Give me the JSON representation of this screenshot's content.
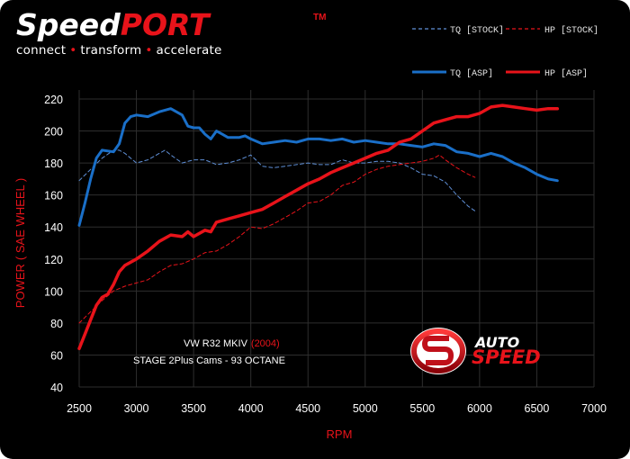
{
  "brand": {
    "word_a": "Speed",
    "word_b": "PORT",
    "tm": "TM",
    "tagline": [
      "connect",
      "transform",
      "accelerate"
    ]
  },
  "annotation": {
    "line1_main": "VW R32 MKIV",
    "line1_year": "(2004)",
    "line2": "STAGE 2Plus Cams - 93 OCTANE"
  },
  "sponsor": {
    "word1": "AUTO",
    "word2": "SPEED"
  },
  "colors": {
    "asp_tq": "#1a6fc8",
    "stock_tq": "#5f8fd6",
    "hp": "#e8131a",
    "background": "#000000",
    "grid": "#2e2e2e"
  },
  "chart_data": {
    "type": "line",
    "xlabel": "RPM",
    "ylabel_main": "POWER",
    "ylabel_paren": "( SAE WHEEL )",
    "xlim": [
      2500,
      7000
    ],
    "ylim": [
      40,
      220
    ],
    "xticks": [
      2500,
      3000,
      3500,
      4000,
      4500,
      5000,
      5500,
      6000,
      6500,
      7000
    ],
    "yticks": [
      40,
      60,
      80,
      100,
      120,
      140,
      160,
      180,
      200,
      220
    ],
    "grid": true,
    "legend_position": "top-right",
    "series": [
      {
        "name": "TQ [STOCK]",
        "style": "dashed",
        "color": "#5f8fd6",
        "width": 1,
        "points": [
          [
            2500,
            169
          ],
          [
            2600,
            176
          ],
          [
            2700,
            183
          ],
          [
            2800,
            188
          ],
          [
            2850,
            188
          ],
          [
            2900,
            186
          ],
          [
            3000,
            180
          ],
          [
            3100,
            182
          ],
          [
            3200,
            186
          ],
          [
            3250,
            188
          ],
          [
            3300,
            185
          ],
          [
            3400,
            180
          ],
          [
            3500,
            182
          ],
          [
            3600,
            182
          ],
          [
            3700,
            179
          ],
          [
            3800,
            180
          ],
          [
            3900,
            182
          ],
          [
            4000,
            185
          ],
          [
            4100,
            178
          ],
          [
            4200,
            177
          ],
          [
            4300,
            178
          ],
          [
            4400,
            179
          ],
          [
            4500,
            180
          ],
          [
            4600,
            179
          ],
          [
            4700,
            179
          ],
          [
            4800,
            182
          ],
          [
            4900,
            180
          ],
          [
            5000,
            180
          ],
          [
            5100,
            181
          ],
          [
            5200,
            181
          ],
          [
            5300,
            180
          ],
          [
            5400,
            177
          ],
          [
            5500,
            173
          ],
          [
            5600,
            172
          ],
          [
            5700,
            168
          ],
          [
            5800,
            160
          ],
          [
            5900,
            153
          ],
          [
            5960,
            150
          ]
        ]
      },
      {
        "name": "HP [STOCK]",
        "style": "dashed",
        "color": "#e8131a",
        "width": 1,
        "points": [
          [
            2500,
            80
          ],
          [
            2600,
            87
          ],
          [
            2700,
            94
          ],
          [
            2800,
            100
          ],
          [
            2900,
            103
          ],
          [
            3000,
            105
          ],
          [
            3100,
            107
          ],
          [
            3200,
            112
          ],
          [
            3300,
            116
          ],
          [
            3400,
            117
          ],
          [
            3500,
            120
          ],
          [
            3600,
            124
          ],
          [
            3700,
            125
          ],
          [
            3800,
            129
          ],
          [
            3900,
            134
          ],
          [
            4000,
            140
          ],
          [
            4100,
            139
          ],
          [
            4200,
            142
          ],
          [
            4300,
            146
          ],
          [
            4400,
            150
          ],
          [
            4500,
            155
          ],
          [
            4600,
            156
          ],
          [
            4700,
            160
          ],
          [
            4800,
            166
          ],
          [
            4900,
            168
          ],
          [
            5000,
            173
          ],
          [
            5100,
            176
          ],
          [
            5200,
            178
          ],
          [
            5300,
            179
          ],
          [
            5400,
            180
          ],
          [
            5500,
            181
          ],
          [
            5600,
            183
          ],
          [
            5650,
            185
          ],
          [
            5700,
            182
          ],
          [
            5800,
            177
          ],
          [
            5900,
            173
          ],
          [
            5960,
            171
          ]
        ]
      },
      {
        "name": "TQ [ASP]",
        "style": "solid",
        "color": "#1a6fc8",
        "width": 3,
        "points": [
          [
            2500,
            141
          ],
          [
            2550,
            155
          ],
          [
            2600,
            170
          ],
          [
            2650,
            183
          ],
          [
            2700,
            188
          ],
          [
            2800,
            187
          ],
          [
            2850,
            192
          ],
          [
            2900,
            205
          ],
          [
            2950,
            209
          ],
          [
            3000,
            210
          ],
          [
            3100,
            209
          ],
          [
            3200,
            212
          ],
          [
            3300,
            214
          ],
          [
            3400,
            210
          ],
          [
            3450,
            203
          ],
          [
            3500,
            202
          ],
          [
            3550,
            202
          ],
          [
            3600,
            198
          ],
          [
            3650,
            195
          ],
          [
            3700,
            200
          ],
          [
            3750,
            198
          ],
          [
            3800,
            196
          ],
          [
            3900,
            196
          ],
          [
            3950,
            197
          ],
          [
            4000,
            195
          ],
          [
            4100,
            192
          ],
          [
            4200,
            193
          ],
          [
            4300,
            194
          ],
          [
            4400,
            193
          ],
          [
            4500,
            195
          ],
          [
            4600,
            195
          ],
          [
            4700,
            194
          ],
          [
            4800,
            195
          ],
          [
            4900,
            193
          ],
          [
            5000,
            194
          ],
          [
            5100,
            193
          ],
          [
            5200,
            192
          ],
          [
            5300,
            192
          ],
          [
            5400,
            191
          ],
          [
            5500,
            190
          ],
          [
            5600,
            192
          ],
          [
            5700,
            191
          ],
          [
            5800,
            187
          ],
          [
            5900,
            186
          ],
          [
            6000,
            184
          ],
          [
            6100,
            186
          ],
          [
            6200,
            184
          ],
          [
            6300,
            180
          ],
          [
            6400,
            177
          ],
          [
            6500,
            173
          ],
          [
            6600,
            170
          ],
          [
            6680,
            169
          ]
        ]
      },
      {
        "name": "HP [ASP]",
        "style": "solid",
        "color": "#e8131a",
        "width": 3.5,
        "points": [
          [
            2500,
            64
          ],
          [
            2550,
            73
          ],
          [
            2600,
            82
          ],
          [
            2650,
            91
          ],
          [
            2700,
            96
          ],
          [
            2750,
            98
          ],
          [
            2800,
            104
          ],
          [
            2850,
            112
          ],
          [
            2900,
            116
          ],
          [
            3000,
            120
          ],
          [
            3100,
            125
          ],
          [
            3200,
            131
          ],
          [
            3300,
            135
          ],
          [
            3400,
            134
          ],
          [
            3450,
            137
          ],
          [
            3500,
            134
          ],
          [
            3600,
            138
          ],
          [
            3650,
            137
          ],
          [
            3700,
            143
          ],
          [
            3800,
            145
          ],
          [
            3900,
            147
          ],
          [
            4000,
            149
          ],
          [
            4100,
            151
          ],
          [
            4200,
            155
          ],
          [
            4300,
            159
          ],
          [
            4400,
            163
          ],
          [
            4500,
            167
          ],
          [
            4600,
            170
          ],
          [
            4700,
            174
          ],
          [
            4800,
            177
          ],
          [
            4900,
            180
          ],
          [
            5000,
            183
          ],
          [
            5100,
            186
          ],
          [
            5200,
            188
          ],
          [
            5300,
            193
          ],
          [
            5400,
            195
          ],
          [
            5500,
            200
          ],
          [
            5600,
            205
          ],
          [
            5700,
            207
          ],
          [
            5800,
            209
          ],
          [
            5900,
            209
          ],
          [
            6000,
            211
          ],
          [
            6100,
            215
          ],
          [
            6200,
            216
          ],
          [
            6300,
            215
          ],
          [
            6400,
            214
          ],
          [
            6500,
            213
          ],
          [
            6600,
            214
          ],
          [
            6680,
            214
          ]
        ]
      }
    ]
  }
}
